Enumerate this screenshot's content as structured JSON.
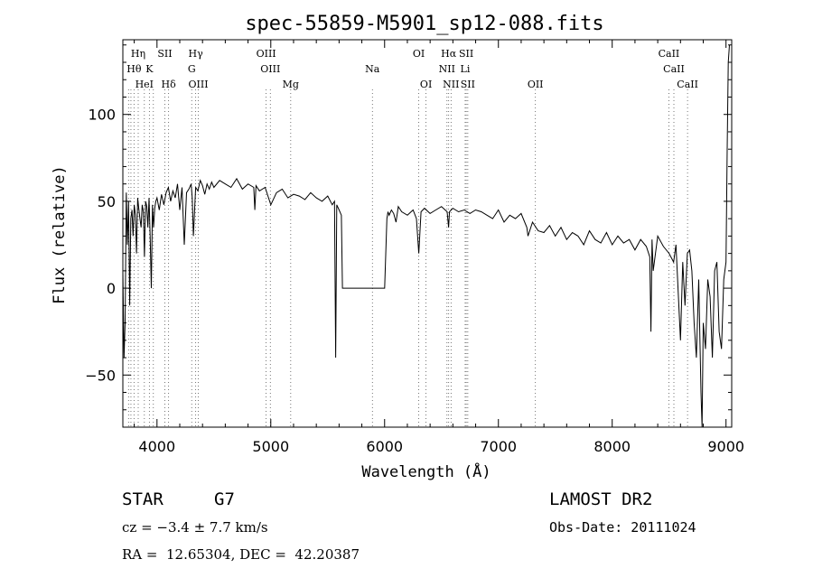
{
  "chart_data": {
    "type": "line",
    "title": "spec-55859-M5901_sp12-088.fits",
    "xlabel": "Wavelength (Å)",
    "ylabel": "Flux (relative)",
    "xlim": [
      3700,
      9050
    ],
    "ylim": [
      -80,
      143
    ],
    "xticks": [
      4000,
      5000,
      6000,
      7000,
      8000,
      9000
    ],
    "yticks": [
      -50,
      0,
      50,
      100
    ],
    "grid": false,
    "legend": "none",
    "series": [
      {
        "x": [
          3700,
          3710,
          3720,
          3730,
          3740,
          3750,
          3760,
          3770,
          3780,
          3790,
          3800,
          3810,
          3820,
          3830,
          3840,
          3850,
          3860,
          3870,
          3880,
          3890,
          3900,
          3910,
          3920,
          3930,
          3940,
          3950,
          3960,
          3970,
          3980,
          3990,
          4000,
          4020,
          4040,
          4060,
          4080,
          4100,
          4120,
          4140,
          4160,
          4180,
          4200,
          4220,
          4240,
          4260,
          4280,
          4300,
          4310,
          4320,
          4340,
          4360,
          4380,
          4400,
          4420,
          4440,
          4460,
          4480,
          4500,
          4550,
          4600,
          4650,
          4700,
          4750,
          4800,
          4850,
          4860,
          4870,
          4900,
          4950,
          5000,
          5050,
          5100,
          5150,
          5200,
          5250,
          5300,
          5350,
          5400,
          5450,
          5500,
          5540,
          5560,
          5570,
          5580,
          5600,
          5620,
          5630,
          5640,
          5660,
          6000,
          6020,
          6030,
          6040,
          6060,
          6080,
          6100,
          6120,
          6150,
          6200,
          6250,
          6280,
          6300,
          6320,
          6350,
          6400,
          6450,
          6500,
          6550,
          6562,
          6570,
          6600,
          6650,
          6700,
          6750,
          6800,
          6850,
          6900,
          6950,
          7000,
          7050,
          7100,
          7150,
          7200,
          7250,
          7260,
          7300,
          7350,
          7400,
          7450,
          7500,
          7550,
          7600,
          7650,
          7700,
          7750,
          7800,
          7850,
          7900,
          7950,
          8000,
          8050,
          8100,
          8150,
          8200,
          8250,
          8300,
          8330,
          8340,
          8350,
          8360,
          8400,
          8450,
          8500,
          8540,
          8560,
          8600,
          8620,
          8640,
          8660,
          8680,
          8700,
          8720,
          8740,
          8760,
          8780,
          8790,
          8800,
          8820,
          8840,
          8860,
          8880,
          8900,
          8920,
          8940,
          8960,
          8980,
          9000,
          9010,
          9020,
          9030
        ],
        "y": [
          10,
          -40,
          -20,
          55,
          25,
          50,
          -10,
          40,
          45,
          30,
          48,
          42,
          20,
          52,
          46,
          40,
          35,
          48,
          44,
          18,
          50,
          47,
          35,
          52,
          30,
          0,
          48,
          35,
          46,
          50,
          52,
          45,
          54,
          48,
          55,
          58,
          50,
          56,
          52,
          60,
          45,
          58,
          25,
          55,
          57,
          60,
          52,
          30,
          58,
          56,
          62,
          59,
          54,
          60,
          57,
          61,
          58,
          62,
          60,
          58,
          63,
          57,
          60,
          58,
          45,
          59,
          56,
          58,
          48,
          55,
          57,
          52,
          54,
          53,
          51,
          55,
          52,
          50,
          53,
          48,
          50,
          -40,
          48,
          45,
          42,
          0,
          0,
          0,
          0,
          40,
          44,
          42,
          45,
          43,
          38,
          47,
          44,
          42,
          45,
          40,
          20,
          44,
          46,
          43,
          45,
          47,
          44,
          35,
          44,
          46,
          44,
          45,
          43,
          45,
          44,
          42,
          40,
          45,
          38,
          42,
          40,
          43,
          35,
          30,
          38,
          33,
          32,
          36,
          30,
          35,
          28,
          32,
          30,
          25,
          33,
          28,
          26,
          32,
          25,
          30,
          26,
          28,
          22,
          28,
          24,
          18,
          -25,
          28,
          10,
          30,
          24,
          20,
          15,
          25,
          -30,
          15,
          -10,
          20,
          22,
          10,
          -20,
          -40,
          5,
          -60,
          -80,
          -20,
          -35,
          5,
          -5,
          -40,
          10,
          15,
          -25,
          -35,
          5,
          15,
          80,
          130,
          140
        ]
      }
    ],
    "line_markers": [
      {
        "label": "Hη",
        "x": 3835,
        "row": 0
      },
      {
        "label": "SII",
        "x": 4069,
        "row": 0
      },
      {
        "label": "Hγ",
        "x": 4340,
        "row": 0
      },
      {
        "label": "OIII",
        "x": 4959,
        "row": 0
      },
      {
        "label": "OI",
        "x": 6300,
        "row": 0
      },
      {
        "label": "Hα",
        "x": 6563,
        "row": 0
      },
      {
        "label": "SII",
        "x": 6717,
        "row": 0
      },
      {
        "label": "CaII",
        "x": 8498,
        "row": 0
      },
      {
        "label": "Hθ",
        "x": 3798,
        "row": 1
      },
      {
        "label": "K",
        "x": 3933,
        "row": 1
      },
      {
        "label": "G",
        "x": 4305,
        "row": 1
      },
      {
        "label": "OIII",
        "x": 4996,
        "row": 1
      },
      {
        "label": "Na",
        "x": 5893,
        "row": 1
      },
      {
        "label": "NII",
        "x": 6548,
        "row": 1
      },
      {
        "label": "Li",
        "x": 6708,
        "row": 1
      },
      {
        "label": "CaII",
        "x": 8542,
        "row": 1
      },
      {
        "label": "HeI",
        "x": 3889,
        "row": 2
      },
      {
        "label": "Hδ",
        "x": 4102,
        "row": 2
      },
      {
        "label": "OIII",
        "x": 4363,
        "row": 2
      },
      {
        "label": "Mg",
        "x": 5175,
        "row": 2
      },
      {
        "label": "OI",
        "x": 6364,
        "row": 2
      },
      {
        "label": "NII",
        "x": 6584,
        "row": 2
      },
      {
        "label": "SII",
        "x": 6731,
        "row": 2
      },
      {
        "label": "OII",
        "x": 7325,
        "row": 2
      },
      {
        "label": "CaII",
        "x": 8662,
        "row": 2
      }
    ],
    "marker_lines_x": [
      3750,
      3771,
      3798,
      3835,
      3889,
      3933,
      3968,
      4069,
      4102,
      4305,
      4340,
      4363,
      4959,
      4996,
      5175,
      5893,
      6300,
      6364,
      6548,
      6563,
      6584,
      6708,
      6717,
      6731,
      7325,
      8498,
      8542,
      8662
    ]
  },
  "info": {
    "class": "STAR",
    "subclass": "G7",
    "survey": "LAMOST DR2",
    "cz": "cz = −3.4 ± 7.7 km/s",
    "obs_date": "Obs-Date: 20111024",
    "coords": "RA =  12.65304, DEC =  42.20387"
  }
}
